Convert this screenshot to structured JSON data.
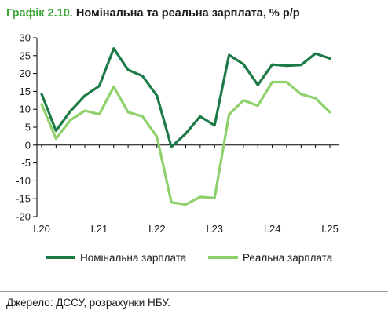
{
  "header": {
    "label": "Графік 2.10.",
    "title": "Номінальна та реальна зарплата, % р/р"
  },
  "source": "Джерело: ДССУ, розрахунки НБУ.",
  "colors": {
    "nominal": "#1b7a45",
    "real": "#8ed16b",
    "label": "#3aa335",
    "axis": "#000000"
  },
  "chart_data": {
    "type": "line",
    "title": "Номінальна та реальна зарплата, % р/р",
    "xlabel": "",
    "ylabel": "",
    "ylim": [
      -20,
      30
    ],
    "yticks": [
      -20,
      -15,
      -10,
      -5,
      0,
      5,
      10,
      15,
      20,
      25,
      30
    ],
    "x_tick_labels": [
      "I.20",
      "I.21",
      "I.22",
      "I.23",
      "I.24",
      "I.25"
    ],
    "x": [
      "I.20",
      "II.20",
      "III.20",
      "IV.20",
      "I.21",
      "II.21",
      "III.21",
      "IV.21",
      "I.22",
      "II.22",
      "III.22",
      "IV.22",
      "I.23",
      "II.23",
      "III.23",
      "IV.23",
      "I.24",
      "II.24",
      "III.24",
      "IV.24",
      "I.25"
    ],
    "grid": false,
    "legend_position": "bottom",
    "series": [
      {
        "name": "Номінальна зарплата",
        "color": "#1b7a45",
        "values": [
          14.3,
          4.0,
          9.5,
          13.8,
          16.5,
          27.0,
          21.0,
          19.3,
          13.8,
          -0.5,
          3.2,
          8.0,
          5.5,
          25.2,
          22.6,
          16.8,
          22.5,
          22.2,
          22.4,
          25.6,
          24.2
        ]
      },
      {
        "name": "Реальна зарплата",
        "color": "#8ed16b",
        "values": [
          11.4,
          1.8,
          7.0,
          9.6,
          8.6,
          16.3,
          9.2,
          8.0,
          2.3,
          -16.0,
          -16.6,
          -14.5,
          -14.8,
          8.5,
          12.5,
          11.0,
          17.6,
          17.6,
          14.2,
          13.1,
          9.2
        ]
      }
    ]
  }
}
